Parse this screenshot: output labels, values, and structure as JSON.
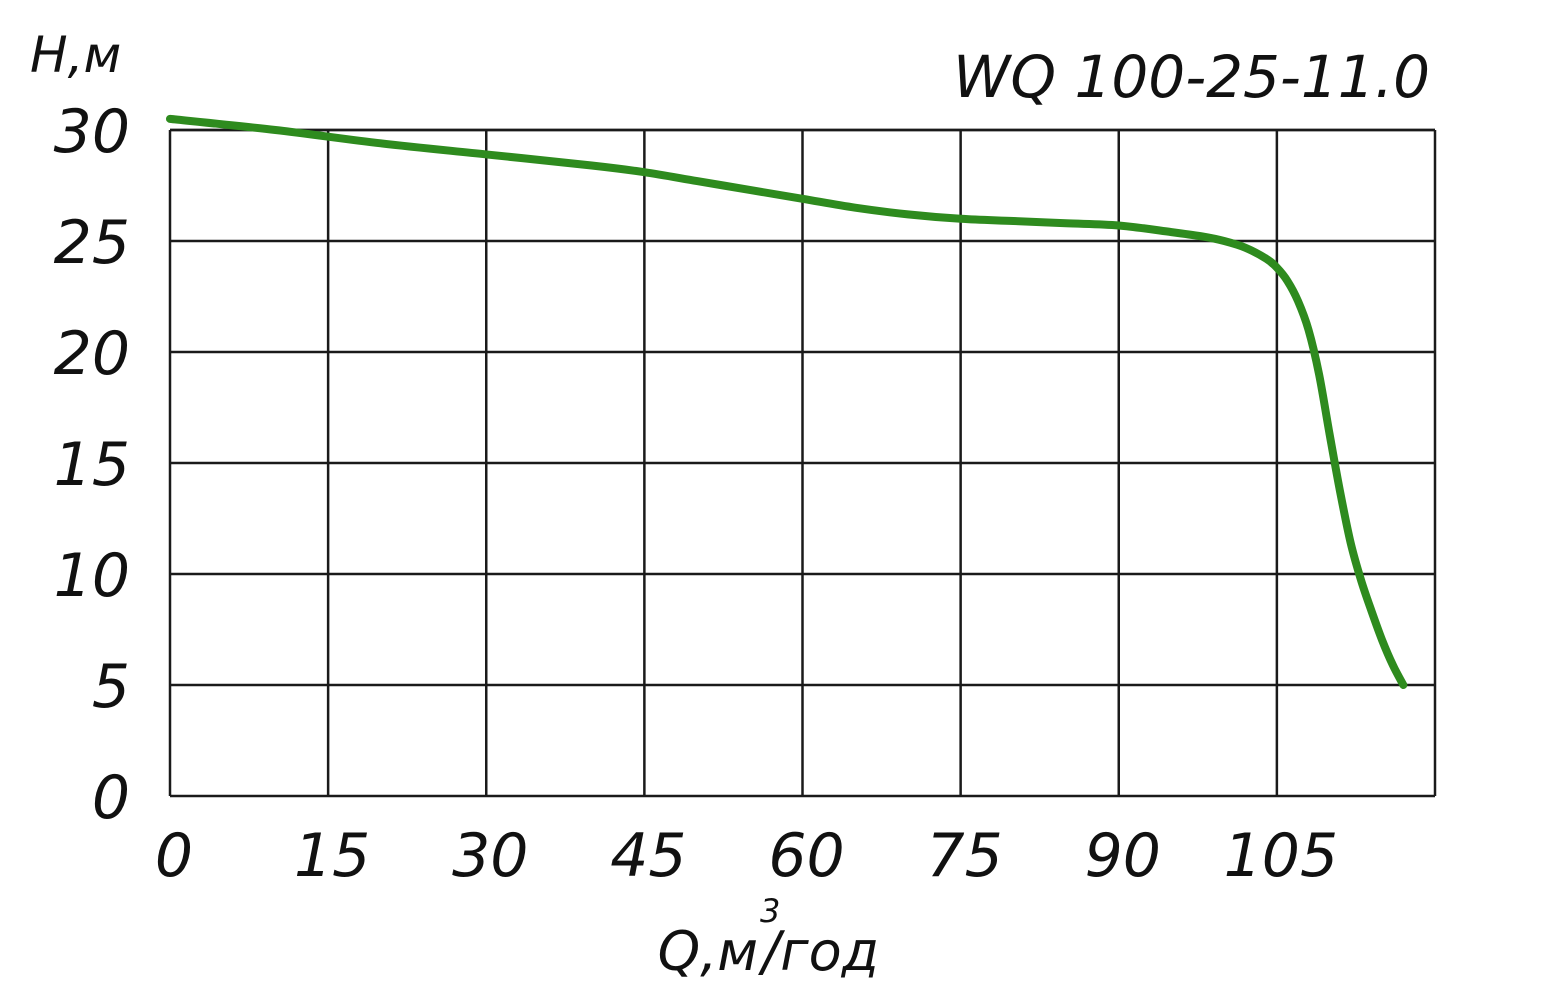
{
  "chart_data": {
    "type": "line",
    "title": "WQ 100-25-11.0",
    "ylabel": "H,м",
    "xlabel_main": "Q,м",
    "xlabel_sup": "3",
    "xlabel_tail": "/год",
    "x_ticks": [
      "0",
      "15",
      "30",
      "45",
      "60",
      "75",
      "90",
      "105"
    ],
    "x_tick_values": [
      0,
      15,
      30,
      45,
      60,
      75,
      90,
      105
    ],
    "y_ticks": [
      "0",
      "5",
      "10",
      "15",
      "20",
      "25",
      "30"
    ],
    "y_tick_values": [
      0,
      5,
      10,
      15,
      20,
      25,
      30
    ],
    "xlim": [
      0,
      120
    ],
    "ylim": [
      0,
      30
    ],
    "grid": true,
    "series": [
      {
        "color": "#2e8b1e",
        "x": [
          0,
          10,
          20,
          30,
          40,
          45,
          50,
          55,
          60,
          65,
          70,
          75,
          80,
          85,
          90,
          95,
          98,
          100,
          102,
          104,
          105,
          106,
          107,
          108,
          109,
          110,
          111,
          112,
          113,
          114,
          115,
          116,
          117
        ],
        "y": [
          30.5,
          30.0,
          29.4,
          28.9,
          28.4,
          28.1,
          27.7,
          27.3,
          26.9,
          26.5,
          26.2,
          26.0,
          25.9,
          25.8,
          25.7,
          25.4,
          25.2,
          25.0,
          24.7,
          24.2,
          23.8,
          23.2,
          22.3,
          21.0,
          19.0,
          16.3,
          13.7,
          11.4,
          9.7,
          8.3,
          7.0,
          5.9,
          5.0
        ]
      }
    ]
  }
}
